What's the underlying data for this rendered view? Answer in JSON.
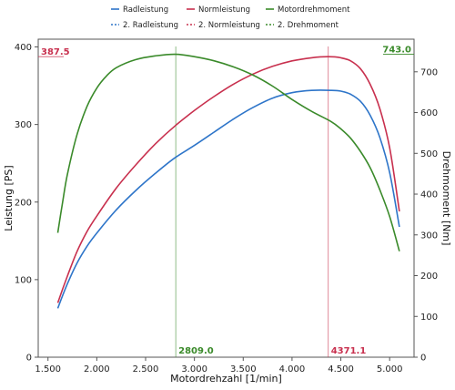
{
  "chart_data": {
    "type": "line",
    "xlabel": "Motordrehzahl [1/min]",
    "ylabel_left": "Leistung [PS]",
    "ylabel_right": "Drehmoment [Nm]",
    "xlim": [
      1400,
      5250
    ],
    "ylim_left": [
      0,
      410
    ],
    "ylim_right": [
      0,
      780
    ],
    "x_ticks": [
      1500,
      2000,
      2500,
      3000,
      3500,
      4000,
      4500,
      5000
    ],
    "x_tick_labels": [
      "1.500",
      "2.000",
      "2.500",
      "3.000",
      "3.500",
      "4.000",
      "4.500",
      "5.000"
    ],
    "y_left_ticks": [
      0,
      100,
      200,
      300,
      400
    ],
    "y_left_tick_labels": [
      "0",
      "100",
      "200",
      "300",
      "400"
    ],
    "y_right_ticks": [
      0,
      100,
      200,
      300,
      400,
      500,
      600,
      700
    ],
    "y_right_tick_labels": [
      "0",
      "100",
      "200",
      "300",
      "400",
      "500",
      "600",
      "700"
    ],
    "grid": false,
    "legend": {
      "placement": "top",
      "entries": [
        {
          "name": "Radleistung",
          "style": "solid",
          "color": "#2e75c9"
        },
        {
          "name": "Normleistung",
          "style": "solid",
          "color": "#c8304e"
        },
        {
          "name": "Motordrehmoment",
          "style": "solid",
          "color": "#3a8a2a"
        },
        {
          "name": "2. Radleistung",
          "style": "dashed",
          "color": "#2e75c9"
        },
        {
          "name": "2. Normleistung",
          "style": "dashed",
          "color": "#c8304e"
        },
        {
          "name": "2. Drehmoment",
          "style": "dashed",
          "color": "#3a8a2a"
        }
      ]
    },
    "series": [
      {
        "name": "Radleistung",
        "axis": "left",
        "color": "#2e75c9",
        "x": [
          1600,
          1700,
          1800,
          1900,
          2000,
          2200,
          2400,
          2600,
          2800,
          3000,
          3200,
          3400,
          3600,
          3800,
          4000,
          4200,
          4400,
          4500,
          4600,
          4700,
          4800,
          4900,
          5000,
          5100
        ],
        "y": [
          63,
          95,
          122,
          143,
          160,
          190,
          215,
          237,
          257,
          273,
          290,
          307,
          322,
          334,
          341,
          344,
          344,
          343,
          339,
          330,
          312,
          283,
          238,
          168
        ]
      },
      {
        "name": "Normleistung",
        "axis": "left",
        "color": "#c8304e",
        "x": [
          1600,
          1700,
          1800,
          1900,
          2000,
          2200,
          2400,
          2600,
          2800,
          3000,
          3200,
          3400,
          3600,
          3800,
          4000,
          4200,
          4371,
          4500,
          4600,
          4700,
          4800,
          4900,
          5000,
          5100
        ],
        "y": [
          70,
          105,
          137,
          162,
          182,
          218,
          248,
          275,
          298,
          318,
          336,
          352,
          365,
          375,
          382,
          386,
          387.5,
          386,
          382,
          372,
          352,
          320,
          270,
          188
        ]
      },
      {
        "name": "Motordrehmoment",
        "axis": "right",
        "color": "#3a8a2a",
        "x": [
          1600,
          1650,
          1700,
          1800,
          1900,
          2000,
          2100,
          2200,
          2400,
          2600,
          2809,
          3000,
          3200,
          3400,
          3600,
          3800,
          4000,
          4200,
          4400,
          4500,
          4600,
          4700,
          4800,
          4900,
          5000,
          5100
        ],
        "y": [
          305,
          380,
          450,
          548,
          615,
          660,
          690,
          710,
          730,
          739,
          743,
          737,
          727,
          712,
          692,
          665,
          632,
          603,
          578,
          560,
          537,
          505,
          465,
          410,
          345,
          260
        ]
      }
    ],
    "markers": [
      {
        "label": "387.5",
        "axis": "left",
        "value": 387.5,
        "color": "#c8304e",
        "side": "left"
      },
      {
        "label": "743.0",
        "axis": "right",
        "value": 743.0,
        "color": "#3a8a2a",
        "side": "right"
      },
      {
        "label": "2809.0",
        "x": 2809,
        "color": "#3a8a2a"
      },
      {
        "label": "4371.1",
        "x": 4371.1,
        "color": "#c8304e"
      }
    ]
  }
}
